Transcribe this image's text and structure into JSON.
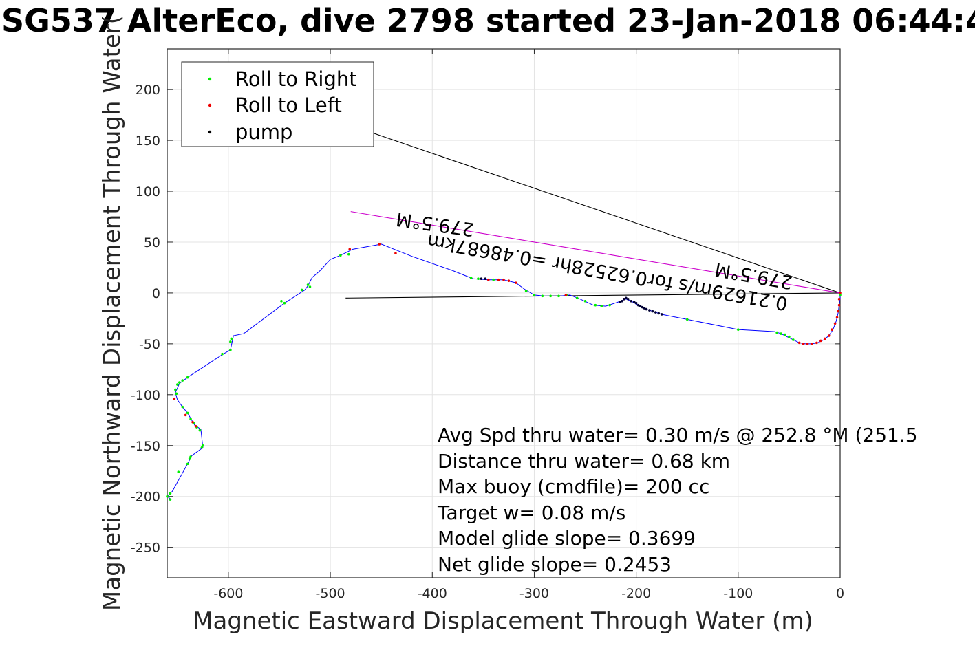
{
  "chart_data": {
    "type": "scatter",
    "title": "SG537 AlterEco, dive 2798 started 23-Jan-2018 06:44:4",
    "xlabel": "Magnetic Eastward Displacement Through Water (m)",
    "ylabel": "Magnetic Northward Displacement Through Water(",
    "xlim": [
      -660,
      0
    ],
    "ylim": [
      -280,
      240
    ],
    "x_ticks": [
      -600,
      -500,
      -400,
      -300,
      -200,
      -100,
      0
    ],
    "x_tick_labels": [
      "-600",
      "-500",
      "-400",
      "-300",
      "-200",
      "-100",
      "0"
    ],
    "y_ticks": [
      200,
      150,
      100,
      50,
      0,
      -50,
      -100,
      -150,
      -200,
      -250
    ],
    "y_tick_labels": [
      "200",
      "150",
      "100",
      "50",
      "0",
      "-50",
      "-100",
      "-150",
      "-200",
      "-250"
    ],
    "grid": true,
    "legend": {
      "position": "top-left",
      "entries": [
        {
          "label": "Roll to Right",
          "color": "#00ee00"
        },
        {
          "label": "Roll to Left",
          "color": "#ee0000"
        },
        {
          "label": "pump",
          "color": "#000000"
        }
      ]
    },
    "track": {
      "color": "#0000ff",
      "points": [
        [
          0,
          0
        ],
        [
          0,
          -5
        ],
        [
          -1,
          -12
        ],
        [
          -2,
          -20
        ],
        [
          -4,
          -28
        ],
        [
          -7,
          -36
        ],
        [
          -11,
          -42
        ],
        [
          -16,
          -46
        ],
        [
          -22,
          -49
        ],
        [
          -28,
          -50
        ],
        [
          -34,
          -50
        ],
        [
          -40,
          -49
        ],
        [
          -46,
          -46
        ],
        [
          -52,
          -43
        ],
        [
          -58,
          -40
        ],
        [
          -64,
          -38
        ],
        [
          -100,
          -36
        ],
        [
          -150,
          -26
        ],
        [
          -175,
          -21
        ],
        [
          -190,
          -16
        ],
        [
          -198,
          -12
        ],
        [
          -205,
          -8
        ],
        [
          -210,
          -6
        ],
        [
          -218,
          -9
        ],
        [
          -230,
          -13
        ],
        [
          -242,
          -12
        ],
        [
          -255,
          -6
        ],
        [
          -265,
          -2
        ],
        [
          -275,
          -3
        ],
        [
          -290,
          -3
        ],
        [
          -300,
          -2
        ],
        [
          -310,
          4
        ],
        [
          -318,
          10
        ],
        [
          -330,
          13
        ],
        [
          -345,
          13
        ],
        [
          -360,
          14
        ],
        [
          -380,
          22
        ],
        [
          -420,
          36
        ],
        [
          -450,
          48
        ],
        [
          -478,
          43
        ],
        [
          -490,
          37
        ],
        [
          -500,
          33
        ],
        [
          -510,
          22
        ],
        [
          -518,
          15
        ],
        [
          -522,
          7
        ],
        [
          -525,
          3
        ],
        [
          -545,
          -10
        ],
        [
          -585,
          -40
        ],
        [
          -595,
          -42
        ],
        [
          -598,
          -56
        ],
        [
          -605,
          -60
        ],
        [
          -640,
          -83
        ],
        [
          -648,
          -89
        ],
        [
          -652,
          -98
        ],
        [
          -650,
          -105
        ],
        [
          -645,
          -112
        ],
        [
          -640,
          -118
        ],
        [
          -636,
          -125
        ],
        [
          -633,
          -130
        ],
        [
          -627,
          -134
        ],
        [
          -625,
          -152
        ],
        [
          -636,
          -160
        ],
        [
          -639,
          -166
        ],
        [
          -645,
          -177
        ],
        [
          -655,
          -195
        ],
        [
          -660,
          -200
        ],
        [
          -656,
          -203
        ]
      ],
      "roll_right": [
        [
          0,
          -2
        ],
        [
          -62,
          -39
        ],
        [
          -58,
          -40
        ],
        [
          -54,
          -41
        ],
        [
          -50,
          -43
        ],
        [
          -46,
          -46
        ],
        [
          -100,
          -36
        ],
        [
          -150,
          -26
        ],
        [
          -226,
          -12
        ],
        [
          -234,
          -13
        ],
        [
          -240,
          -12
        ],
        [
          -250,
          -8
        ],
        [
          -258,
          -5
        ],
        [
          -268,
          -2
        ],
        [
          -276,
          -3
        ],
        [
          -284,
          -3
        ],
        [
          -292,
          -3
        ],
        [
          -300,
          -2
        ],
        [
          -308,
          2
        ],
        [
          -340,
          13
        ],
        [
          -355,
          14
        ],
        [
          -362,
          15
        ],
        [
          -482,
          38
        ],
        [
          -490,
          37
        ],
        [
          -520,
          6
        ],
        [
          -522,
          8
        ],
        [
          -528,
          3
        ],
        [
          -545,
          -10
        ],
        [
          -548,
          -8
        ],
        [
          -597,
          -45
        ],
        [
          -598,
          -48
        ],
        [
          -598,
          -56
        ],
        [
          -606,
          -60
        ],
        [
          -640,
          -83
        ],
        [
          -645,
          -86
        ],
        [
          -648,
          -88
        ],
        [
          -650,
          -90
        ],
        [
          -652,
          -95
        ],
        [
          -651,
          -99
        ],
        [
          -645,
          -112
        ],
        [
          -640,
          -118
        ],
        [
          -637,
          -124
        ],
        [
          -634,
          -128
        ],
        [
          -631,
          -132
        ],
        [
          -628,
          -135
        ],
        [
          -625,
          -150
        ],
        [
          -626,
          -152
        ],
        [
          -637,
          -161
        ],
        [
          -638,
          -163
        ],
        [
          -640,
          -168
        ],
        [
          -649,
          -176
        ],
        [
          -657,
          -197
        ],
        [
          -660,
          -200
        ],
        [
          -657,
          -203
        ]
      ],
      "roll_left": [
        [
          0,
          0
        ],
        [
          -1,
          -6
        ],
        [
          -1,
          -12
        ],
        [
          -2,
          -18
        ],
        [
          -3,
          -24
        ],
        [
          -5,
          -30
        ],
        [
          -8,
          -36
        ],
        [
          -11,
          -42
        ],
        [
          -15,
          -45
        ],
        [
          -19,
          -47
        ],
        [
          -23,
          -49
        ],
        [
          -28,
          -50
        ],
        [
          -32,
          -50
        ],
        [
          -36,
          -50
        ],
        [
          -40,
          -49
        ],
        [
          -212,
          -6
        ],
        [
          -269,
          -2
        ],
        [
          -318,
          10
        ],
        [
          -325,
          12
        ],
        [
          -330,
          13
        ],
        [
          -335,
          13
        ],
        [
          -345,
          13
        ],
        [
          -436,
          39
        ],
        [
          -452,
          48
        ],
        [
          -481,
          43
        ],
        [
          -653,
          -104
        ],
        [
          -642,
          -120
        ],
        [
          -635,
          -127
        ],
        [
          -632,
          -131
        ]
      ],
      "pump": [
        [
          -175,
          -21
        ],
        [
          -178,
          -20
        ],
        [
          -181,
          -19
        ],
        [
          -184,
          -18
        ],
        [
          -187,
          -17
        ],
        [
          -190,
          -16
        ],
        [
          -192,
          -15
        ],
        [
          -194,
          -14
        ],
        [
          -196,
          -13
        ],
        [
          -198,
          -12
        ],
        [
          -200,
          -10
        ],
        [
          -202,
          -9
        ],
        [
          -205,
          -8
        ],
        [
          -208,
          -6
        ],
        [
          -210,
          -5
        ],
        [
          -212,
          -6
        ],
        [
          -214,
          -8
        ],
        [
          -216,
          -9
        ],
        [
          -348,
          14
        ],
        [
          -352,
          14
        ]
      ]
    },
    "lines": {
      "black_to_origin": [
        [
          -475,
          163
        ],
        [
          0,
          0
        ]
      ],
      "black_horizontal": [
        [
          -485,
          -5
        ],
        [
          0,
          0
        ]
      ],
      "magenta_current": [
        [
          -480,
          80
        ],
        [
          0,
          0
        ]
      ]
    },
    "rotated_labels": [
      {
        "text": "279.5°M"
      },
      {
        "text": "0.21629m/s for0.62528hr =0.48687km"
      },
      {
        "text": "279.5°M"
      }
    ],
    "annotations": [
      "Avg Spd thru water=  0.30 m/s @ 252.8 °M (251.5",
      "Distance thru water=  0.68 km",
      "Max buoy (cmdfile)= 200 cc",
      "Target w= 0.08 m/s",
      "Model glide slope= 0.3699",
      "Net glide slope= 0.2453"
    ]
  }
}
